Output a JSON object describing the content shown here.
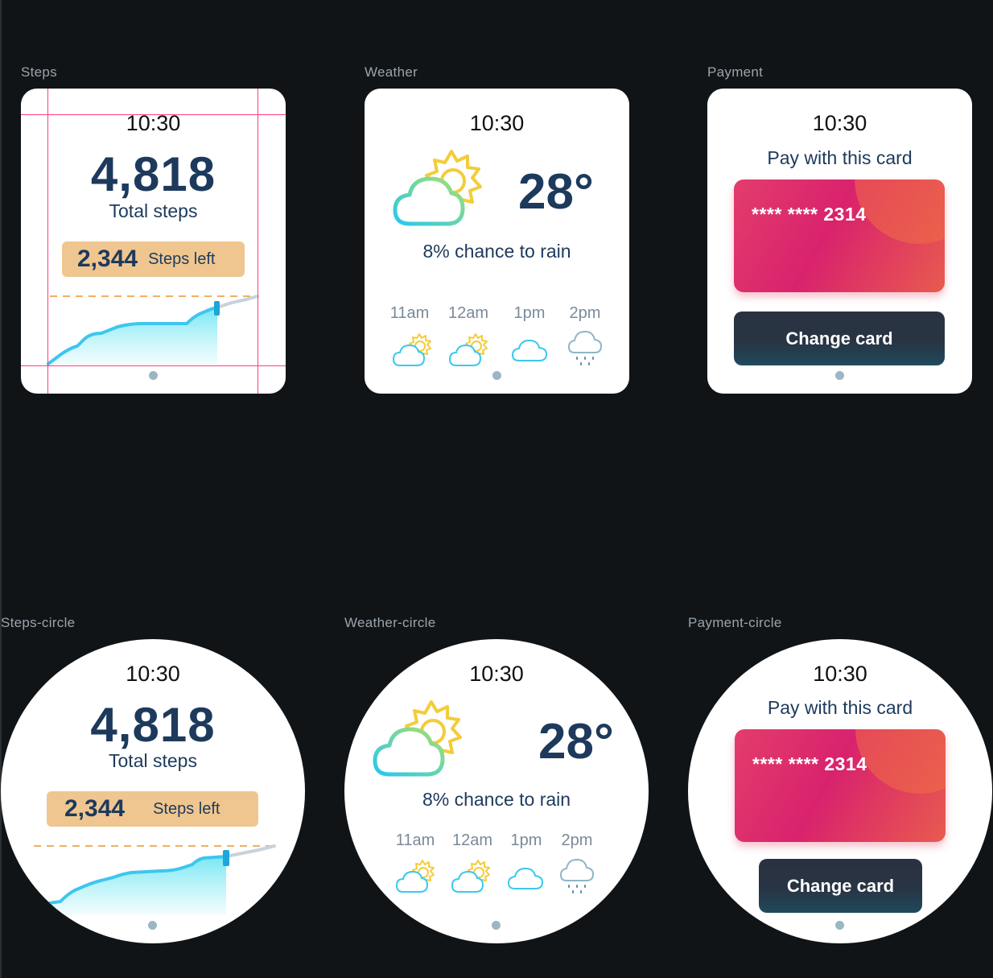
{
  "labels": {
    "steps": "Steps",
    "weather": "Weather",
    "payment": "Payment",
    "steps_circle": "Steps-circle",
    "weather_circle": "Weather-circle",
    "payment_circle": "Payment-circle"
  },
  "time": "10:30",
  "steps": {
    "total": "4,818",
    "total_label": "Total steps",
    "left": "2,344",
    "left_label": "Steps left"
  },
  "weather": {
    "temperature": "28°",
    "rain": "8% chance to rain",
    "hours": [
      {
        "label": "11am",
        "icon": "partly-sunny-icon"
      },
      {
        "label": "12am",
        "icon": "partly-sunny-icon"
      },
      {
        "label": "1pm",
        "icon": "cloud-icon"
      },
      {
        "label": "2pm",
        "icon": "rain-icon"
      }
    ]
  },
  "payment": {
    "title": "Pay with this card",
    "card_number": "**** **** 2314",
    "button": "Change card"
  },
  "colors": {
    "background": "#101417",
    "primary_text": "#1d3a5c",
    "pill": "#f0c690",
    "dash": "#f0b060",
    "chart_line": "#3ec6ee",
    "card_pink": "#d9226d",
    "card_orange": "#e85b4e",
    "button_dark": "#2a3242"
  }
}
